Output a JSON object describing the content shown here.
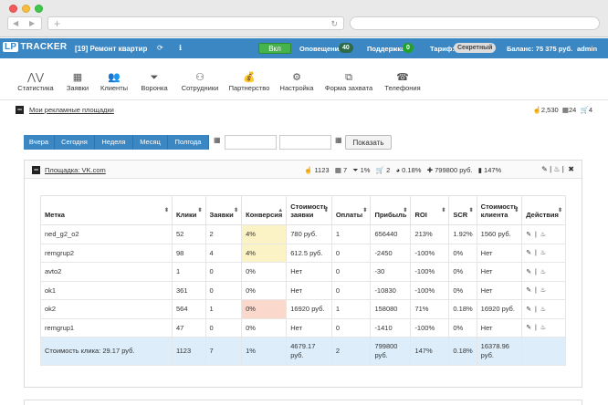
{
  "browser": {
    "back": "◀",
    "forward": "▶",
    "new_tab": "+",
    "reload": "↻"
  },
  "header": {
    "logo_lp": "LP",
    "logo_tracker": "TRACKER",
    "project": "[19] Ремонт квартир",
    "toggle_label": "Вкл",
    "notifications_label": "Оповещения",
    "notifications_count": "40",
    "support_label": "Поддержка",
    "support_count": "0",
    "tariff_label": "Тариф:",
    "tariff_value": "Секретный",
    "balance": "Баланс: 75 375 руб.",
    "user": "admin"
  },
  "menu": [
    {
      "label": "Статистика",
      "icon": "chart-icon",
      "glyph": "⋀⋁"
    },
    {
      "label": "Заявки",
      "icon": "calendar-icon",
      "glyph": "▦"
    },
    {
      "label": "Клиенты",
      "icon": "users-icon",
      "glyph": "👥"
    },
    {
      "label": "Воронка",
      "icon": "funnel-icon",
      "glyph": "⏷"
    },
    {
      "label": "Сотрудники",
      "icon": "org-icon",
      "glyph": "⚇"
    },
    {
      "label": "Партнерство",
      "icon": "moneybag-icon",
      "glyph": "💰"
    },
    {
      "label": "Настройка",
      "icon": "gear-icon",
      "glyph": "⚙"
    },
    {
      "label": "Форма захвата",
      "icon": "form-icon",
      "glyph": "⧉"
    },
    {
      "label": "Телефония",
      "icon": "phone-icon",
      "glyph": "☎"
    }
  ],
  "sources": {
    "title": "Мои рекламные площадки",
    "stat_clicks": "2,530",
    "stat_leads": "24",
    "stat_sales": "4"
  },
  "filters": {
    "buttons": [
      "Вчера",
      "Сегодня",
      "Неделя",
      "Месяц",
      "Полгода"
    ],
    "date_from": "",
    "date_to": "",
    "show_label": "Показать"
  },
  "panel": {
    "title": "Площадка: VK.com",
    "stats": [
      "1123",
      "7",
      "1%",
      "2",
      "0.18%",
      "799800 руб.",
      "147%"
    ]
  },
  "table": {
    "columns": [
      "Метка",
      "Клики",
      "Заявки",
      "Конверсия",
      "Стоимость заявки",
      "Оплаты",
      "Прибыль",
      "ROI",
      "SCR",
      "Стоимость клиента",
      "Действия"
    ],
    "rows": [
      {
        "label": "ned_g2_o2",
        "clicks": "52",
        "leads": "2",
        "conv": "4%",
        "lead_cost": "780 руб.",
        "pay": "1",
        "profit": "656440",
        "roi": "213%",
        "scr": "1.92%",
        "client_cost": "1560 руб."
      },
      {
        "label": "remgrup2",
        "clicks": "98",
        "leads": "4",
        "conv": "4%",
        "lead_cost": "612.5 руб.",
        "pay": "0",
        "profit": "-2450",
        "roi": "-100%",
        "scr": "0%",
        "client_cost": "Нет"
      },
      {
        "label": "avto2",
        "clicks": "1",
        "leads": "0",
        "conv": "0%",
        "lead_cost": "Нет",
        "pay": "0",
        "profit": "-30",
        "roi": "-100%",
        "scr": "0%",
        "client_cost": "Нет"
      },
      {
        "label": "ok1",
        "clicks": "361",
        "leads": "0",
        "conv": "0%",
        "lead_cost": "Нет",
        "pay": "0",
        "profit": "-10830",
        "roi": "-100%",
        "scr": "0%",
        "client_cost": "Нет"
      },
      {
        "label": "ok2",
        "clicks": "564",
        "leads": "1",
        "conv": "0%",
        "lead_cost": "16920 руб.",
        "pay": "1",
        "profit": "158080",
        "roi": "71%",
        "scr": "0.18%",
        "client_cost": "16920 руб."
      },
      {
        "label": "remgrup1",
        "clicks": "47",
        "leads": "0",
        "conv": "0%",
        "lead_cost": "Нет",
        "pay": "0",
        "profit": "-1410",
        "roi": "-100%",
        "scr": "0%",
        "client_cost": "Нет"
      }
    ],
    "total": {
      "label": "Стоимость клика: 29.17 руб.",
      "clicks": "1123",
      "leads": "7",
      "conv": "1%",
      "lead_cost": "4679.17 руб.",
      "pay": "2",
      "profit": "799800 руб.",
      "roi": "147%",
      "scr": "0.18%",
      "client_cost": "16378.96 руб."
    }
  },
  "colors": {
    "accent": "#3b87c4",
    "toggle": "#46b24b",
    "highlight_yellow": "#fbf3c6",
    "highlight_pink": "#fbd8cc",
    "total_row": "#ddeefa"
  }
}
